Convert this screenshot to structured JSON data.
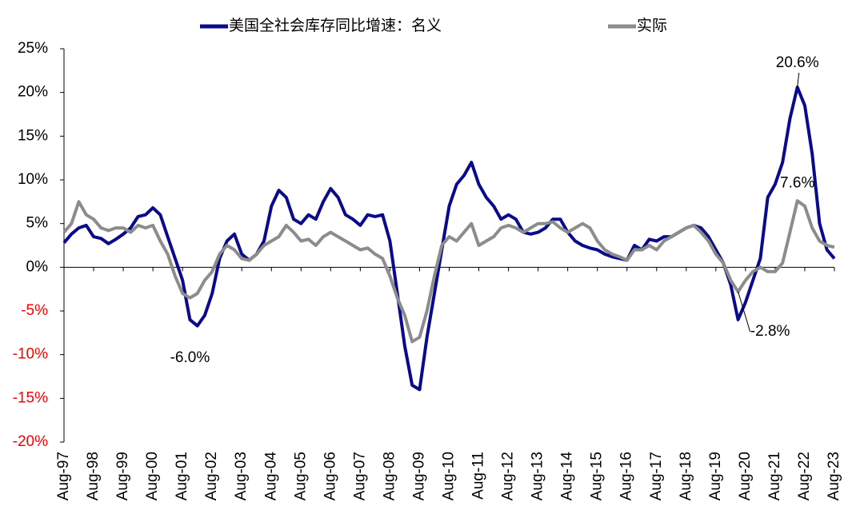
{
  "chart_data": {
    "type": "line",
    "categories": [
      "Aug-97",
      null,
      null,
      null,
      "Aug-98",
      null,
      null,
      null,
      "Aug-99",
      null,
      null,
      null,
      "Aug-00",
      null,
      null,
      null,
      "Aug-01",
      null,
      null,
      null,
      "Aug-02",
      null,
      null,
      null,
      "Aug-03",
      null,
      null,
      null,
      "Aug-04",
      null,
      null,
      null,
      "Aug-05",
      null,
      null,
      null,
      "Aug-06",
      null,
      null,
      null,
      "Aug-07",
      null,
      null,
      null,
      "Aug-08",
      null,
      null,
      null,
      "Aug-09",
      null,
      null,
      null,
      "Aug-10",
      null,
      null,
      null,
      "Aug-11",
      null,
      null,
      null,
      "Aug-12",
      null,
      null,
      null,
      "Aug-13",
      null,
      null,
      null,
      "Aug-14",
      null,
      null,
      null,
      "Aug-15",
      null,
      null,
      null,
      "Aug-16",
      null,
      null,
      null,
      "Aug-17",
      null,
      null,
      null,
      "Aug-18",
      null,
      null,
      null,
      "Aug-19",
      null,
      null,
      null,
      "Aug-20",
      null,
      null,
      null,
      "Aug-21",
      null,
      null,
      null,
      "Aug-22",
      null,
      null,
      null,
      "Aug-23"
    ],
    "series": [
      {
        "name": "美国全社会库存同比增速：名义",
        "color": "#0a0a8c",
        "values": [
          2.8,
          3.8,
          4.5,
          4.8,
          3.5,
          3.3,
          2.7,
          3.2,
          3.8,
          4.5,
          5.8,
          6.0,
          6.8,
          6.0,
          3.5,
          1.0,
          -1.5,
          -6.0,
          -6.7,
          -5.5,
          -3.0,
          1.0,
          3.0,
          3.8,
          1.5,
          0.8,
          1.5,
          3.0,
          7.0,
          8.8,
          8.0,
          5.5,
          5.0,
          6.0,
          5.5,
          7.5,
          9.0,
          8.0,
          6.0,
          5.5,
          4.8,
          6.0,
          5.8,
          6.0,
          3.0,
          -3.0,
          -9.0,
          -13.5,
          -14.0,
          -8.0,
          -3.0,
          2.0,
          7.0,
          9.5,
          10.5,
          12.0,
          9.5,
          8.0,
          7.0,
          5.5,
          6.0,
          5.5,
          4.0,
          3.8,
          4.0,
          4.5,
          5.5,
          5.5,
          4.0,
          3.0,
          2.5,
          2.2,
          2.0,
          1.5,
          1.2,
          1.0,
          0.8,
          2.5,
          2.0,
          3.2,
          3.0,
          3.5,
          3.5,
          4.0,
          4.5,
          4.8,
          4.5,
          3.5,
          2.0,
          0.5,
          -2.0,
          -6.0,
          -4.0,
          -1.5,
          1.0,
          8.0,
          9.5,
          12.0,
          17.0,
          20.6,
          18.5,
          13.0,
          5.0,
          2.0,
          1.0
        ]
      },
      {
        "name": "实际",
        "color": "#8c8c8c",
        "values": [
          4.0,
          5.0,
          7.5,
          6.0,
          5.5,
          4.5,
          4.2,
          4.5,
          4.5,
          4.0,
          4.8,
          4.5,
          4.8,
          3.0,
          1.5,
          -1.0,
          -3.0,
          -3.5,
          -3.0,
          -1.5,
          -0.5,
          1.5,
          2.5,
          2.0,
          1.0,
          0.8,
          1.5,
          2.5,
          3.0,
          3.5,
          4.8,
          4.0,
          3.0,
          3.2,
          2.5,
          3.5,
          4.0,
          3.5,
          3.0,
          2.5,
          2.0,
          2.2,
          1.5,
          1.0,
          -1.0,
          -3.5,
          -5.5,
          -8.5,
          -8.0,
          -5.0,
          -1.0,
          2.5,
          3.5,
          3.0,
          4.0,
          5.0,
          2.5,
          3.0,
          3.5,
          4.5,
          4.8,
          4.5,
          4.0,
          4.5,
          5.0,
          5.0,
          5.2,
          4.5,
          4.0,
          4.5,
          5.0,
          4.5,
          3.0,
          2.0,
          1.5,
          1.2,
          0.8,
          2.0,
          2.0,
          2.5,
          2.0,
          3.0,
          3.5,
          4.0,
          4.5,
          4.8,
          4.0,
          3.0,
          1.5,
          0.5,
          -1.5,
          -2.8,
          -1.5,
          -0.5,
          0.0,
          -0.5,
          -0.5,
          0.5,
          4.0,
          7.6,
          7.0,
          4.5,
          3.0,
          2.5,
          2.3
        ]
      }
    ],
    "ylim": [
      -20,
      25
    ],
    "yticks": [
      {
        "value": -20,
        "label": "-20%"
      },
      {
        "value": -15,
        "label": "-15%"
      },
      {
        "value": -10,
        "label": "-10%"
      },
      {
        "value": -5,
        "label": "-5%"
      },
      {
        "value": 0,
        "label": "0%"
      },
      {
        "value": 5,
        "label": "5%"
      },
      {
        "value": 10,
        "label": "10%"
      },
      {
        "value": 15,
        "label": "15%"
      },
      {
        "value": 20,
        "label": "20%"
      },
      {
        "value": 25,
        "label": "25%"
      }
    ],
    "negative_tick_color": "#ff0000",
    "legend": "top",
    "annotations": [
      {
        "series": 0,
        "value": 20.6,
        "label": "20.6%"
      },
      {
        "series": 1,
        "value": 7.6,
        "label": "7.6%"
      },
      {
        "series": 1,
        "value": -2.8,
        "label": "-2.8%"
      },
      {
        "series": 0,
        "value": -6.0,
        "label": "-6.0%"
      }
    ]
  }
}
